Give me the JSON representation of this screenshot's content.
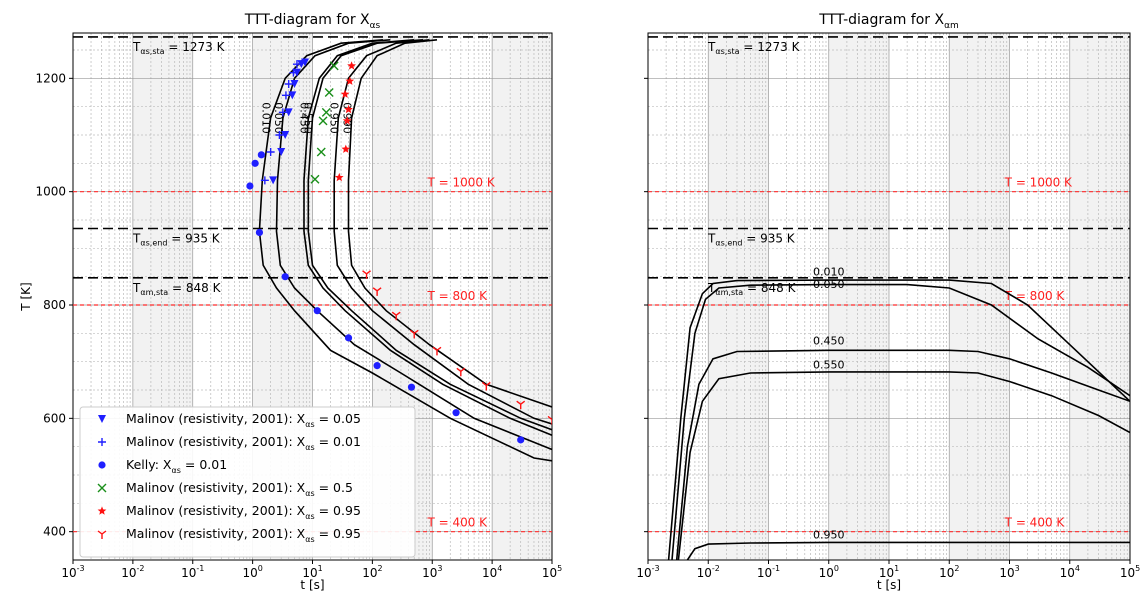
{
  "chart_data": [
    {
      "type": "line",
      "title": "TTT-diagram for X",
      "title_sub": "αs",
      "xlabel": "t [s]",
      "ylabel": "T [K]",
      "xscale": "log",
      "xlim": [
        0.001,
        100000
      ],
      "ylim": [
        350,
        1280
      ],
      "x_ticks": [
        {
          "base": "10",
          "exp": "-3"
        },
        {
          "base": "10",
          "exp": "-2"
        },
        {
          "base": "10",
          "exp": "-1"
        },
        {
          "base": "10",
          "exp": "0"
        },
        {
          "base": "10",
          "exp": "1"
        },
        {
          "base": "10",
          "exp": "2"
        },
        {
          "base": "10",
          "exp": "3"
        },
        {
          "base": "10",
          "exp": "4"
        },
        {
          "base": "10",
          "exp": "5"
        }
      ],
      "y_ticks": [
        "400",
        "600",
        "800",
        "1000",
        "1200"
      ],
      "grid": true,
      "legend_position": "bottom-left",
      "reference_lines": [
        {
          "y": 1273,
          "style": "black-dashed",
          "label_main": "T",
          "label_sub": "αs,sta",
          "label_value": "= 1273 K"
        },
        {
          "y": 935,
          "style": "black-dashed",
          "label_main": "T",
          "label_sub": "αs,end",
          "label_value": "= 935 K"
        },
        {
          "y": 848,
          "style": "black-dashed",
          "label_main": "T",
          "label_sub": "αm,sta",
          "label_value": "= 848 K"
        },
        {
          "y": 1000,
          "style": "red-dashed",
          "label": "T = 1000 K"
        },
        {
          "y": 800,
          "style": "red-dashed",
          "label": "T = 800 K"
        },
        {
          "y": 400,
          "style": "red-dashed",
          "label": "T = 400 K"
        }
      ],
      "series": [
        {
          "label": "0.010",
          "points": [
            [
              150,
              1268
            ],
            [
              30,
              1262
            ],
            [
              8,
              1240
            ],
            [
              3.5,
              1200
            ],
            [
              2,
              1130
            ],
            [
              1.45,
              1020
            ],
            [
              1.3,
              930
            ],
            [
              1.5,
              870
            ],
            [
              2.5,
              830
            ],
            [
              5,
              790
            ],
            [
              20,
              720
            ],
            [
              100,
              680
            ],
            [
              2000,
              600
            ],
            [
              50000,
              530
            ],
            [
              100000,
              525
            ]
          ]
        },
        {
          "label": "0.050",
          "points": [
            [
              200,
              1268
            ],
            [
              40,
              1262
            ],
            [
              11,
              1240
            ],
            [
              5,
              1200
            ],
            [
              3.2,
              1130
            ],
            [
              2.6,
              1020
            ],
            [
              2.5,
              930
            ],
            [
              2.9,
              870
            ],
            [
              5,
              830
            ],
            [
              12,
              790
            ],
            [
              50,
              730
            ],
            [
              300,
              680
            ],
            [
              5000,
              600
            ],
            [
              100000,
              545
            ]
          ]
        },
        {
          "label": "0.450",
          "points": [
            [
              500,
              1268
            ],
            [
              100,
              1262
            ],
            [
              26,
              1240
            ],
            [
              13,
              1200
            ],
            [
              8.5,
              1130
            ],
            [
              7.2,
              1020
            ],
            [
              7.2,
              930
            ],
            [
              8.5,
              870
            ],
            [
              15,
              830
            ],
            [
              35,
              790
            ],
            [
              200,
              720
            ],
            [
              1500,
              660
            ],
            [
              20000,
              600
            ],
            [
              100000,
              570
            ]
          ]
        },
        {
          "label": "0.550",
          "points": [
            [
              700,
              1268
            ],
            [
              120,
              1262
            ],
            [
              30,
              1240
            ],
            [
              15,
              1200
            ],
            [
              10,
              1130
            ],
            [
              8.5,
              1020
            ],
            [
              8.5,
              930
            ],
            [
              10,
              870
            ],
            [
              18,
              830
            ],
            [
              45,
              790
            ],
            [
              250,
              720
            ],
            [
              2000,
              660
            ],
            [
              30000,
              600
            ],
            [
              100000,
              580
            ]
          ]
        },
        {
          "label": "0.950",
          "points": [
            [
              900,
              1268
            ],
            [
              250,
              1262
            ],
            [
              80,
              1240
            ],
            [
              40,
              1200
            ],
            [
              27,
              1130
            ],
            [
              23,
              1020
            ],
            [
              23,
              930
            ],
            [
              26,
              870
            ],
            [
              45,
              830
            ],
            [
              100,
              790
            ],
            [
              500,
              730
            ],
            [
              4000,
              660
            ],
            [
              50000,
              600
            ],
            [
              100000,
              590
            ]
          ]
        },
        {
          "label": "0.990",
          "points": [
            [
              1200,
              1268
            ],
            [
              350,
              1262
            ],
            [
              120,
              1240
            ],
            [
              65,
              1200
            ],
            [
              45,
              1130
            ],
            [
              40,
              1020
            ],
            [
              40,
              930
            ],
            [
              45,
              870
            ],
            [
              75,
              830
            ],
            [
              170,
              790
            ],
            [
              900,
              730
            ],
            [
              8000,
              660
            ],
            [
              100000,
              620
            ]
          ]
        }
      ],
      "experimental": [
        {
          "name": "Malinov (resistivity, 2001): X",
          "name_sub": "αs",
          "name_tail": " = 0.05",
          "marker": "triangle-down",
          "color": "#1f1fff",
          "points": [
            [
              2.2,
              1020
            ],
            [
              3,
              1070
            ],
            [
              3.5,
              1100
            ],
            [
              4,
              1140
            ],
            [
              4.6,
              1170
            ],
            [
              5,
              1190
            ],
            [
              5.5,
              1210
            ],
            [
              6.5,
              1225
            ],
            [
              7.5,
              1228
            ]
          ]
        },
        {
          "name": "Malinov (resistivity, 2001): X",
          "name_sub": "αs",
          "name_tail": " = 0.01",
          "marker": "plus",
          "color": "#1f1fff",
          "points": [
            [
              1.6,
              1020
            ],
            [
              2,
              1070
            ],
            [
              2.8,
              1100
            ],
            [
              3.2,
              1140
            ],
            [
              3.6,
              1170
            ],
            [
              4,
              1190
            ],
            [
              4.8,
              1210
            ],
            [
              5.5,
              1225
            ]
          ]
        },
        {
          "name": "Kelly: X",
          "name_sub": "αs",
          "name_tail": " = 0.01",
          "marker": "circle",
          "color": "#1f1fff",
          "points": [
            [
              0.9,
              1010
            ],
            [
              1.1,
              1050
            ],
            [
              1.4,
              1065
            ],
            [
              1.3,
              928
            ],
            [
              3.5,
              850
            ],
            [
              12,
              790
            ],
            [
              40,
              742
            ],
            [
              120,
              693
            ],
            [
              450,
              655
            ],
            [
              2500,
              610
            ],
            [
              30000,
              562
            ]
          ]
        },
        {
          "name": "Malinov (resistivity, 2001): X",
          "name_sub": "αs",
          "name_tail": " = 0.5",
          "marker": "x",
          "color": "#1a8f1a",
          "points": [
            [
              11,
              1022
            ],
            [
              14,
              1070
            ],
            [
              15,
              1125
            ],
            [
              17,
              1140
            ],
            [
              19,
              1175
            ],
            [
              23,
              1222
            ]
          ]
        },
        {
          "name": "Malinov (resistivity, 2001): X",
          "name_sub": "αs",
          "name_tail": " = 0.95",
          "marker": "star",
          "color": "#ff1010",
          "points": [
            [
              28,
              1025
            ],
            [
              36,
              1075
            ],
            [
              38,
              1125
            ],
            [
              40,
              1145
            ],
            [
              35,
              1172
            ],
            [
              42,
              1195
            ],
            [
              45,
              1222
            ]
          ]
        },
        {
          "name": "Malinov (resistivity, 2001): X",
          "name_sub": "αs",
          "name_tail": " = 0.95",
          "marker": "tri-down",
          "color": "#ff1010",
          "points": [
            [
              80,
              855
            ],
            [
              120,
              825
            ],
            [
              250,
              782
            ],
            [
              500,
              750
            ],
            [
              1200,
              720
            ],
            [
              3000,
              683
            ],
            [
              8000,
              658
            ],
            [
              30000,
              625
            ],
            [
              100000,
              598
            ]
          ]
        }
      ]
    },
    {
      "type": "line",
      "title": "TTT-diagram for X",
      "title_sub": "αm",
      "xlabel": "t [s]",
      "ylabel": "",
      "xscale": "log",
      "xlim": [
        0.001,
        100000
      ],
      "ylim": [
        350,
        1280
      ],
      "x_ticks": [
        {
          "base": "10",
          "exp": "-3"
        },
        {
          "base": "10",
          "exp": "-2"
        },
        {
          "base": "10",
          "exp": "-1"
        },
        {
          "base": "10",
          "exp": "0"
        },
        {
          "base": "10",
          "exp": "1"
        },
        {
          "base": "10",
          "exp": "2"
        },
        {
          "base": "10",
          "exp": "3"
        },
        {
          "base": "10",
          "exp": "4"
        },
        {
          "base": "10",
          "exp": "5"
        }
      ],
      "y_ticks": [],
      "grid": true,
      "reference_lines": [
        {
          "y": 1273,
          "style": "black-dashed",
          "label_main": "T",
          "label_sub": "αs,sta",
          "label_value": "= 1273 K"
        },
        {
          "y": 935,
          "style": "black-dashed",
          "label_main": "T",
          "label_sub": "αs,end",
          "label_value": "= 935 K"
        },
        {
          "y": 848,
          "style": "black-dashed",
          "label_main": "T",
          "label_sub": "αm,sta",
          "label_value": "= 848 K"
        },
        {
          "y": 1000,
          "style": "red-dashed",
          "label": "T = 1000 K"
        },
        {
          "y": 800,
          "style": "red-dashed",
          "label": "T = 800 K"
        },
        {
          "y": 400,
          "style": "red-dashed",
          "label": "T = 400 K"
        }
      ],
      "series": [
        {
          "label": "0.010",
          "label_at": [
            1,
            852
          ],
          "points": [
            [
              0.0022,
              350
            ],
            [
              0.0035,
              600
            ],
            [
              0.005,
              760
            ],
            [
              0.008,
              820
            ],
            [
              0.012,
              838
            ],
            [
              0.03,
              843
            ],
            [
              1,
              844
            ],
            [
              100,
              844
            ],
            [
              500,
              838
            ],
            [
              2000,
              800
            ],
            [
              10000,
              730
            ],
            [
              100000,
              630
            ]
          ]
        },
        {
          "label": "0.050",
          "label_at": [
            1,
            830
          ],
          "points": [
            [
              0.0025,
              350
            ],
            [
              0.004,
              600
            ],
            [
              0.006,
              750
            ],
            [
              0.009,
              810
            ],
            [
              0.015,
              830
            ],
            [
              0.05,
              835
            ],
            [
              1,
              836
            ],
            [
              20,
              836
            ],
            [
              100,
              830
            ],
            [
              500,
              800
            ],
            [
              3000,
              740
            ],
            [
              20000,
              690
            ],
            [
              100000,
              640
            ]
          ]
        },
        {
          "label": "0.450",
          "label_at": [
            1,
            730
          ],
          "points": [
            [
              0.003,
              350
            ],
            [
              0.0045,
              550
            ],
            [
              0.007,
              660
            ],
            [
              0.012,
              705
            ],
            [
              0.03,
              718
            ],
            [
              1,
              720
            ],
            [
              100,
              720
            ],
            [
              300,
              718
            ],
            [
              1000,
              705
            ],
            [
              5000,
              680
            ],
            [
              30000,
              650
            ],
            [
              100000,
              630
            ]
          ]
        },
        {
          "label": "0.550",
          "label_at": [
            1,
            688
          ],
          "points": [
            [
              0.0032,
              350
            ],
            [
              0.005,
              540
            ],
            [
              0.008,
              630
            ],
            [
              0.015,
              670
            ],
            [
              0.05,
              680
            ],
            [
              1,
              682
            ],
            [
              100,
              682
            ],
            [
              300,
              680
            ],
            [
              1000,
              665
            ],
            [
              5000,
              640
            ],
            [
              30000,
              605
            ],
            [
              100000,
              575
            ]
          ]
        },
        {
          "label": "0.950",
          "label_at": [
            1,
            388
          ],
          "points": [
            [
              0.0045,
              350
            ],
            [
              0.006,
              370
            ],
            [
              0.01,
              378
            ],
            [
              0.05,
              380
            ],
            [
              1,
              381
            ],
            [
              100,
              381
            ],
            [
              100000,
              381
            ]
          ]
        }
      ]
    }
  ]
}
